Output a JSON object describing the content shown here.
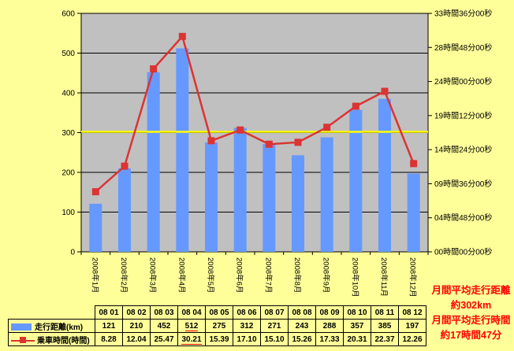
{
  "page": {
    "background": "#FFFF99"
  },
  "chart_data": {
    "type": "bar+line combo",
    "categories": [
      "2008年1月",
      "2008年2月",
      "2008年3月",
      "2008年4月",
      "2008年5月",
      "2008年6月",
      "2008年7月",
      "2008年8月",
      "2008年9月",
      "2008年10月",
      "2008年11月",
      "2008年12月"
    ],
    "series": [
      {
        "name": "走行距離(km)",
        "type": "bar",
        "axis": "left",
        "color": "#6699FF",
        "values": [
          121,
          210,
          452,
          512,
          275,
          312,
          271,
          243,
          288,
          357,
          385,
          197
        ]
      },
      {
        "name": "乗車時間(時間)",
        "type": "line",
        "axis": "right",
        "color": "#DC3333",
        "marker": "square",
        "values_hmm": [
          "8.28",
          "12.04",
          "25.47",
          "30.21",
          "15.39",
          "17.10",
          "15.10",
          "15.26",
          "17.33",
          "20.31",
          "22.37",
          "12.26"
        ]
      }
    ],
    "left_axis": {
      "min": 0,
      "max": 600,
      "step": 100,
      "ticks": [
        "0",
        "100",
        "200",
        "300",
        "400",
        "500",
        "600"
      ]
    },
    "right_axis": {
      "min_hours": 0,
      "max_hours": 33.6,
      "step_hours": 4.8,
      "ticks_bottom_to_top": [
        "00時間00分00秒",
        "04時間48分00秒",
        "09時間36分00秒",
        "14時間24分00秒",
        "19時間12分00秒",
        "24時間00分00秒",
        "28時間48分00秒",
        "33時間36分00秒"
      ]
    },
    "average_line": {
      "value": 302,
      "color": "#FFFF00"
    },
    "plot_bg": "#C0C0C0",
    "gridlines": "horizontal, every 100, black",
    "legend_position": "in table at bottom-left"
  },
  "table": {
    "col_headers": [
      "08 01",
      "08 02",
      "08 03",
      "08 04",
      "08 05",
      "08 06",
      "08 07",
      "08 08",
      "08 09",
      "08 10",
      "08 11",
      "08 12"
    ],
    "rows": [
      {
        "label": "走行距離(km)",
        "swatch": "bar-swatch-icon",
        "values": [
          "121",
          "210",
          "452",
          "512",
          "275",
          "312",
          "271",
          "243",
          "288",
          "357",
          "385",
          "197"
        ]
      },
      {
        "label": "乗車時間(時間)",
        "swatch": "line-marker-swatch-icon",
        "values": [
          "8.28",
          "12.04",
          "25.47",
          "30.21",
          "15.39",
          "17.10",
          "15.10",
          "15.26",
          "17.33",
          "20.31",
          "22.37",
          "12.26"
        ]
      }
    ],
    "underline_col_index": 3,
    "underline_color": "#FF0000"
  },
  "summary": {
    "color": "#FF0000",
    "line1": "月間平均走行距離",
    "line2": "約302km",
    "line3": "月間平均走行時間",
    "line4": "約17時間47分"
  }
}
